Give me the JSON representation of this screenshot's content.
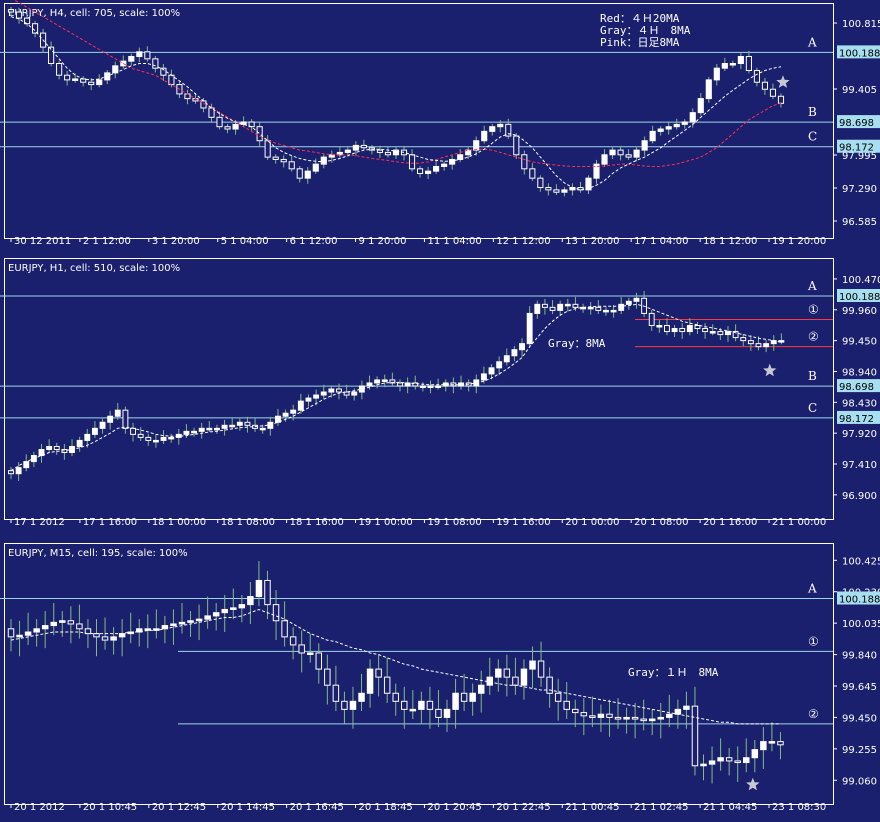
{
  "colors": {
    "background": "#1a1f6e",
    "up": "#ffffff",
    "down": "#ffffff",
    "wick": "#7fbf7f",
    "level_line": "#9fd7ea",
    "red_line": "#ff3a3a",
    "ma_gray": "#ffffff",
    "ma_red": "#ff3050",
    "price_tag_bg": "#a8dff0",
    "star": "#c8c8d2"
  },
  "chart_data": [
    {
      "type": "candlestick",
      "title": "EURJPY, H4, cell: 705, scale: 100%",
      "legend": [
        "Red：４Ｈ20MA",
        "Gray：４Ｈ　8MA",
        "Pink：日足8MA"
      ],
      "ylim": [
        96.35,
        101.2
      ],
      "yticks": [
        "100.815",
        "99.405",
        "97.995",
        "97.290",
        "96.585"
      ],
      "xticks": [
        "30 12 2011",
        "2 1 12:00",
        "3 1 20:00",
        "5 1 04:00",
        "6 1 12:00",
        "9 1 20:00",
        "11 1 04:00",
        "12 1 12:00",
        "13 1 20:00",
        "17 1 04:00",
        "18 1 12:00",
        "19 1 20:00"
      ],
      "levels": [
        {
          "label": "A",
          "value": 100.188,
          "tag": "100.188"
        },
        {
          "label": "B",
          "value": 98.698,
          "tag": "98.698"
        },
        {
          "label": "C",
          "value": 98.172,
          "tag": "98.172"
        }
      ],
      "close": [
        101.05,
        100.92,
        100.8,
        100.6,
        100.3,
        99.95,
        99.7,
        99.6,
        99.62,
        99.55,
        99.5,
        99.6,
        99.75,
        99.9,
        100.0,
        100.1,
        100.2,
        100.05,
        99.85,
        99.7,
        99.5,
        99.3,
        99.2,
        99.15,
        99.0,
        98.8,
        98.6,
        98.55,
        98.65,
        98.7,
        98.6,
        98.3,
        97.95,
        97.9,
        97.85,
        97.7,
        97.5,
        97.65,
        97.8,
        97.95,
        98.0,
        98.05,
        98.1,
        98.2,
        98.15,
        98.1,
        98.05,
        98.0,
        98.1,
        98.0,
        97.7,
        97.6,
        97.65,
        97.75,
        97.8,
        97.9,
        98.0,
        98.1,
        98.3,
        98.5,
        98.6,
        98.65,
        98.4,
        98.0,
        97.7,
        97.5,
        97.3,
        97.25,
        97.2,
        97.25,
        97.3,
        97.25,
        97.5,
        97.8,
        98.0,
        98.1,
        98.0,
        97.95,
        98.1,
        98.3,
        98.5,
        98.55,
        98.6,
        98.65,
        98.7,
        98.9,
        99.2,
        99.6,
        99.85,
        99.95,
        99.95,
        100.1,
        99.8,
        99.55,
        99.4,
        99.25,
        99.1
      ],
      "series": [
        {
          "name": "Red：４Ｈ20MA",
          "values": [
            101.35,
            101.25,
            101.15,
            101.05,
            100.95,
            100.85,
            100.75,
            100.65,
            100.55,
            100.45,
            100.35,
            100.25,
            100.15,
            100.05,
            99.95,
            99.85,
            99.8,
            99.75,
            99.7,
            99.6,
            99.5,
            99.4,
            99.3,
            99.2,
            99.1,
            99.0,
            98.9,
            98.8,
            98.7,
            98.6,
            98.5,
            98.4,
            98.3,
            98.25,
            98.2,
            98.15,
            98.1,
            98.08,
            98.05,
            98.02,
            98.0,
            98.0,
            98.0,
            97.98,
            97.95,
            97.92,
            97.9,
            97.88,
            97.85,
            97.83,
            97.82,
            97.82,
            97.85,
            97.9,
            97.95,
            98.0,
            98.05,
            98.1,
            98.12,
            98.12,
            98.1,
            98.05,
            98.0,
            97.95,
            97.9,
            97.85,
            97.82,
            97.8,
            97.78,
            97.76,
            97.75,
            97.75,
            97.75,
            97.75,
            97.76,
            97.78,
            97.8,
            97.8,
            97.78,
            97.76,
            97.75,
            97.75,
            97.78,
            97.8,
            97.85,
            97.9,
            97.95,
            98.05,
            98.15,
            98.3,
            98.45,
            98.6,
            98.75,
            98.85,
            98.95,
            99.05,
            99.1
          ]
        },
        {
          "name": "Gray：４Ｈ　8MA",
          "values": [
            100.95,
            100.9,
            100.8,
            100.65,
            100.45,
            100.25,
            100.05,
            99.85,
            99.7,
            99.62,
            99.6,
            99.62,
            99.68,
            99.75,
            99.82,
            99.9,
            99.95,
            99.95,
            99.9,
            99.82,
            99.7,
            99.58,
            99.45,
            99.3,
            99.15,
            99.0,
            98.88,
            98.78,
            98.7,
            98.65,
            98.6,
            98.45,
            98.3,
            98.15,
            98.05,
            97.98,
            97.92,
            97.88,
            97.86,
            97.85,
            97.88,
            97.92,
            97.98,
            98.05,
            98.1,
            98.12,
            98.12,
            98.1,
            98.08,
            98.05,
            98.0,
            97.95,
            97.9,
            97.88,
            97.86,
            97.87,
            97.9,
            97.95,
            98.02,
            98.12,
            98.25,
            98.38,
            98.45,
            98.42,
            98.3,
            98.15,
            97.95,
            97.75,
            97.55,
            97.4,
            97.3,
            97.25,
            97.28,
            97.35,
            97.45,
            97.6,
            97.72,
            97.8,
            97.88,
            97.95,
            98.05,
            98.15,
            98.28,
            98.4,
            98.52,
            98.65,
            98.8,
            98.95,
            99.1,
            99.25,
            99.38,
            99.5,
            99.62,
            99.72,
            99.8,
            99.85,
            99.88
          ]
        }
      ]
    },
    {
      "type": "candlestick",
      "title": "EURJPY, H1, cell: 510, scale: 100%",
      "legend": [
        "Gray：8MA"
      ],
      "ylim": [
        96.6,
        100.75
      ],
      "yticks": [
        "100.470",
        "99.960",
        "99.450",
        "98.940",
        "98.430",
        "97.920",
        "97.410",
        "96.900"
      ],
      "xticks": [
        "17 1 2012",
        "17 1 16:00",
        "18 1 00:00",
        "18 1 08:00",
        "18 1 16:00",
        "19 1 00:00",
        "19 1 08:00",
        "19 1 16:00",
        "20 1 00:00",
        "20 1 08:00",
        "20 1 16:00",
        "21 1 00:00"
      ],
      "levels": [
        {
          "label": "A",
          "value": 100.188,
          "tag": "100.188"
        },
        {
          "label": "①",
          "value": 99.8,
          "tag": ""
        },
        {
          "label": "②",
          "value": 99.35,
          "tag": ""
        },
        {
          "label": "B",
          "value": 98.698,
          "tag": "98.698"
        },
        {
          "label": "C",
          "value": 98.172,
          "tag": "98.172"
        }
      ],
      "close": [
        97.25,
        97.35,
        97.45,
        97.55,
        97.65,
        97.7,
        97.65,
        97.6,
        97.7,
        97.8,
        97.9,
        98.0,
        98.1,
        98.2,
        98.3,
        98.0,
        97.9,
        97.85,
        97.8,
        97.8,
        97.85,
        97.85,
        97.9,
        97.95,
        97.95,
        98.0,
        98.0,
        98.0,
        98.05,
        98.05,
        98.1,
        98.05,
        98.0,
        98.0,
        98.1,
        98.2,
        98.25,
        98.3,
        98.45,
        98.5,
        98.55,
        98.6,
        98.65,
        98.6,
        98.55,
        98.6,
        98.7,
        98.75,
        98.8,
        98.8,
        98.75,
        98.7,
        98.75,
        98.7,
        98.7,
        98.7,
        98.7,
        98.75,
        98.7,
        98.75,
        98.7,
        98.8,
        98.9,
        99.0,
        99.1,
        99.2,
        99.3,
        99.4,
        99.9,
        100.05,
        100.0,
        99.95,
        100.05,
        100.05,
        100.0,
        100.0,
        100.0,
        99.95,
        99.95,
        99.95,
        100.05,
        100.1,
        100.15,
        99.9,
        99.7,
        99.7,
        99.6,
        99.65,
        99.6,
        99.7,
        99.65,
        99.6,
        99.6,
        99.55,
        99.6,
        99.5,
        99.45,
        99.4,
        99.35,
        99.4,
        99.45,
        99.45
      ],
      "series": [
        {
          "name": "Gray：8MA",
          "values": [
            97.3,
            97.38,
            97.45,
            97.5,
            97.55,
            97.6,
            97.62,
            97.63,
            97.65,
            97.68,
            97.72,
            97.78,
            97.85,
            97.92,
            98.0,
            98.02,
            98.0,
            97.97,
            97.94,
            97.9,
            97.88,
            97.87,
            97.87,
            97.88,
            97.9,
            97.92,
            97.94,
            97.95,
            97.97,
            97.99,
            98.01,
            98.02,
            98.03,
            98.04,
            98.06,
            98.1,
            98.15,
            98.2,
            98.27,
            98.34,
            98.41,
            98.48,
            98.54,
            98.58,
            98.6,
            98.62,
            98.65,
            98.68,
            98.72,
            98.75,
            98.76,
            98.76,
            98.75,
            98.74,
            98.73,
            98.72,
            98.72,
            98.72,
            98.72,
            98.72,
            98.73,
            98.75,
            98.78,
            98.83,
            98.9,
            98.98,
            99.07,
            99.17,
            99.35,
            99.5,
            99.65,
            99.77,
            99.87,
            99.94,
            99.98,
            100.0,
            100.01,
            100.02,
            100.02,
            100.02,
            100.02,
            100.03,
            100.05,
            100.02,
            99.97,
            99.92,
            99.87,
            99.82,
            99.77,
            99.74,
            99.71,
            99.68,
            99.66,
            99.63,
            99.61,
            99.58,
            99.55,
            99.52,
            99.49,
            99.47,
            99.45,
            99.43
          ]
        }
      ]
    },
    {
      "type": "candlestick",
      "title": "EURJPY, M15, cell: 195, scale: 100%",
      "legend": [
        "Gray：１Ｈ　8MA"
      ],
      "ylim": [
        98.95,
        100.52
      ],
      "yticks": [
        "100.425",
        "100.230",
        "100.035",
        "99.840",
        "99.645",
        "99.450",
        "99.255",
        "99.060"
      ],
      "xticks": [
        "20 1 2012",
        "20 1 10:45",
        "20 1 12:45",
        "20 1 14:45",
        "20 1 16:45",
        "20 1 18:45",
        "20 1 20:45",
        "20 1 22:45",
        "21 1 00:45",
        "21 1 02:45",
        "21 1 04:45",
        "23 1 08:30"
      ],
      "levels": [
        {
          "label": "A",
          "value": 100.188,
          "tag": "100.188"
        },
        {
          "label": "①",
          "value": 99.86,
          "tag": ""
        },
        {
          "label": "②",
          "value": 99.41,
          "tag": ""
        }
      ],
      "close": [
        99.95,
        99.96,
        99.98,
        100.0,
        100.02,
        100.04,
        100.05,
        100.03,
        100.0,
        99.97,
        99.95,
        99.93,
        99.95,
        99.97,
        99.98,
        100.0,
        100.0,
        100.0,
        100.02,
        100.03,
        100.04,
        100.05,
        100.06,
        100.08,
        100.1,
        100.12,
        100.13,
        100.15,
        100.2,
        100.3,
        100.15,
        100.05,
        99.95,
        99.9,
        99.85,
        99.85,
        99.75,
        99.65,
        99.55,
        99.5,
        99.55,
        99.6,
        99.75,
        99.7,
        99.6,
        99.55,
        99.5,
        99.5,
        99.55,
        99.5,
        99.45,
        99.5,
        99.6,
        99.55,
        99.6,
        99.65,
        99.7,
        99.75,
        99.7,
        99.65,
        99.75,
        99.8,
        99.7,
        99.6,
        99.55,
        99.5,
        99.48,
        99.46,
        99.45,
        99.47,
        99.45,
        99.44,
        99.45,
        99.44,
        99.43,
        99.44,
        99.45,
        99.47,
        99.5,
        99.52,
        99.15,
        99.16,
        99.18,
        99.2,
        99.18,
        99.17,
        99.2,
        99.25,
        99.3,
        99.3,
        99.28
      ],
      "series": [
        {
          "name": "Gray：１Ｈ　8MA",
          "values": [
            99.93,
            99.94,
            99.95,
            99.96,
            99.97,
            99.98,
            99.98,
            99.98,
            99.98,
            99.97,
            99.97,
            99.97,
            99.97,
            99.97,
            99.98,
            99.98,
            99.99,
            99.99,
            100.0,
            100.01,
            100.02,
            100.03,
            100.04,
            100.05,
            100.06,
            100.07,
            100.07,
            100.08,
            100.1,
            100.12,
            100.1,
            100.08,
            100.06,
            100.03,
            100.0,
            99.97,
            99.95,
            99.93,
            99.92,
            99.9,
            99.88,
            99.87,
            99.85,
            99.84,
            99.82,
            99.8,
            99.78,
            99.77,
            99.75,
            99.74,
            99.73,
            99.72,
            99.71,
            99.7,
            99.69,
            99.68,
            99.67,
            99.66,
            99.65,
            99.65,
            99.64,
            99.63,
            99.62,
            99.62,
            99.61,
            99.6,
            99.59,
            99.58,
            99.57,
            99.56,
            99.55,
            99.54,
            99.53,
            99.52,
            99.51,
            99.5,
            99.49,
            99.48,
            99.47,
            99.46,
            99.45,
            99.44,
            99.43,
            99.42,
            99.42,
            99.41,
            99.41,
            99.41,
            99.41,
            99.41,
            99.41
          ]
        }
      ]
    }
  ]
}
